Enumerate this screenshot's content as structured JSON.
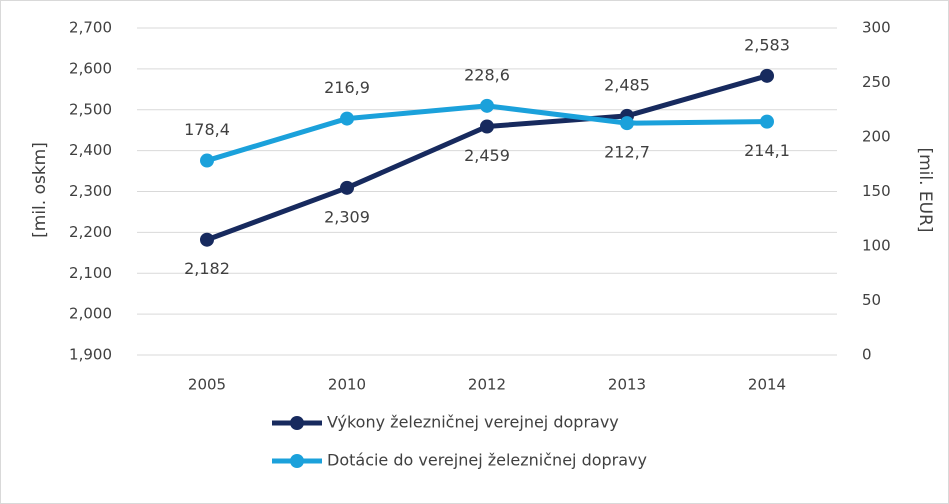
{
  "chart_data": {
    "type": "line",
    "categories": [
      "2005",
      "2010",
      "2012",
      "2013",
      "2014"
    ],
    "y_label": "[mil. oskm]",
    "y2_label": "[mil. EUR]",
    "ylim": [
      1900,
      2700
    ],
    "yticks": [
      {
        "value": 1900,
        "label": "1,900"
      },
      {
        "value": 2000,
        "label": "2,000"
      },
      {
        "value": 2100,
        "label": "2,100"
      },
      {
        "value": 2200,
        "label": "2,200"
      },
      {
        "value": 2300,
        "label": "2,300"
      },
      {
        "value": 2400,
        "label": "2,400"
      },
      {
        "value": 2500,
        "label": "2,500"
      },
      {
        "value": 2600,
        "label": "2,600"
      },
      {
        "value": 2700,
        "label": "2,700"
      }
    ],
    "y2lim": [
      0,
      300
    ],
    "y2ticks": [
      0,
      50,
      100,
      150,
      200,
      250,
      300
    ],
    "grid": true,
    "legend": "bottom",
    "series": [
      {
        "name": "Výkony železničnej verejnej dopravy",
        "color": "#172a5e",
        "values": [
          2182,
          2309,
          2459,
          2485,
          2583
        ],
        "value_labels": [
          "2,182",
          "2,309",
          "2,459",
          "2,485",
          "2,583"
        ]
      },
      {
        "name": "Dotácie do verejnej železničnej dopravy",
        "color": "#1ba1db",
        "axis": "y2",
        "values": [
          178.4,
          216.9,
          228.6,
          212.7,
          214.1
        ],
        "value_labels": [
          "178,4",
          "216,9",
          "228,6",
          "212,7",
          "214,1"
        ]
      }
    ]
  }
}
